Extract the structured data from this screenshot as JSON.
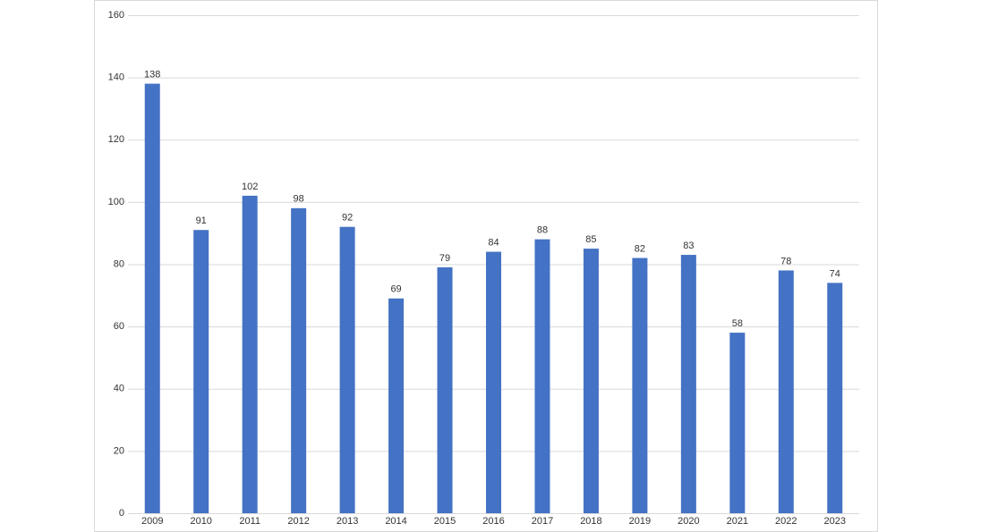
{
  "chart_data": {
    "type": "bar",
    "categories": [
      "2009",
      "2010",
      "2011",
      "2012",
      "2013",
      "2014",
      "2015",
      "2016",
      "2017",
      "2018",
      "2019",
      "2020",
      "2021",
      "2022",
      "2023"
    ],
    "values": [
      138,
      91,
      102,
      98,
      92,
      69,
      79,
      84,
      88,
      85,
      82,
      83,
      58,
      78,
      74
    ],
    "color": "#4472c4",
    "ylim": [
      0,
      160
    ],
    "yticks": [
      0,
      20,
      40,
      60,
      80,
      100,
      120,
      140,
      160
    ],
    "grid": true
  }
}
